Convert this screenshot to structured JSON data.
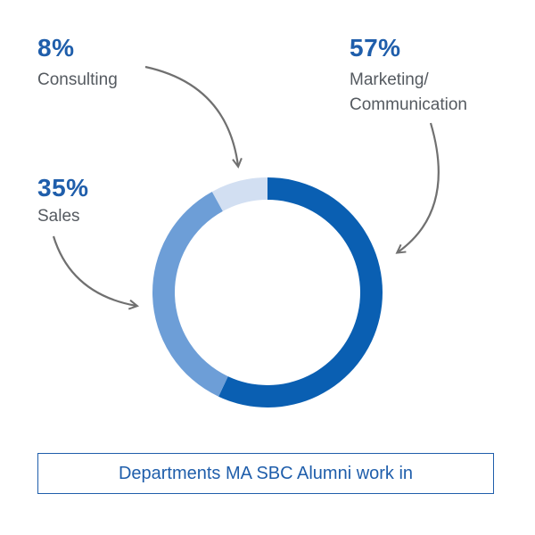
{
  "chart_data": {
    "type": "pie",
    "variant": "donut",
    "slices": [
      {
        "label": "Marketing/ Communication",
        "label_lines": [
          "Marketing/",
          "Communication"
        ],
        "percent_label": "57%",
        "value": 57,
        "color": "#0a5fb2"
      },
      {
        "label": "Sales",
        "label_lines": [
          "Sales"
        ],
        "percent_label": "35%",
        "value": 35,
        "color": "#6d9ed7"
      },
      {
        "label": "Consulting",
        "label_lines": [
          "Consulting"
        ],
        "percent_label": "8%",
        "value": 8,
        "color": "#d2dff2"
      }
    ],
    "caption": "Departments MA SBC Alumni work in"
  },
  "colors": {
    "accent": "#1f5eab",
    "label_gray": "#555a60",
    "arrow_gray": "#707070"
  }
}
